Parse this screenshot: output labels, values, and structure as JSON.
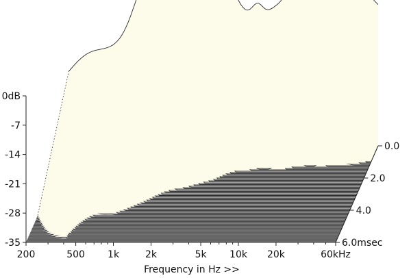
{
  "chart_data": {
    "type": "area",
    "subtype": "waterfall (cumulative spectral decay)",
    "xlabel": "Frequency in Hz >>",
    "x_scale": "log",
    "x_range": [
      200,
      60000
    ],
    "x_ticks": [
      {
        "value": 200,
        "label": "200"
      },
      {
        "value": 500,
        "label": "500"
      },
      {
        "value": 1000,
        "label": "1k"
      },
      {
        "value": 2000,
        "label": "2k"
      },
      {
        "value": 5000,
        "label": "5k"
      },
      {
        "value": 10000,
        "label": "10k"
      },
      {
        "value": 20000,
        "label": "20k"
      },
      {
        "value": 60000,
        "label": "60kHz"
      }
    ],
    "y_unit": "dB",
    "y_range": [
      -35,
      0
    ],
    "y_ticks": [
      {
        "value": 0,
        "label": "0dB"
      },
      {
        "value": -7,
        "label": "-7"
      },
      {
        "value": -14,
        "label": "-14"
      },
      {
        "value": -21,
        "label": "-21"
      },
      {
        "value": -28,
        "label": "-28"
      },
      {
        "value": -35,
        "label": "-35"
      }
    ],
    "z_unit": "msec",
    "z_range": [
      0,
      6
    ],
    "z_ticks": [
      {
        "value": 0,
        "label": "0.0"
      },
      {
        "value": 2,
        "label": "2.0"
      },
      {
        "value": 4,
        "label": "4.0"
      },
      {
        "value": 6,
        "label": "6.0msec"
      }
    ],
    "grid": false,
    "colors": {
      "surface": "#fdfbe9",
      "traces": "#2a2a2a",
      "floor_dark": "#6a6a6a",
      "floor_light": "#a8a8a8",
      "axis": "#222222"
    }
  }
}
